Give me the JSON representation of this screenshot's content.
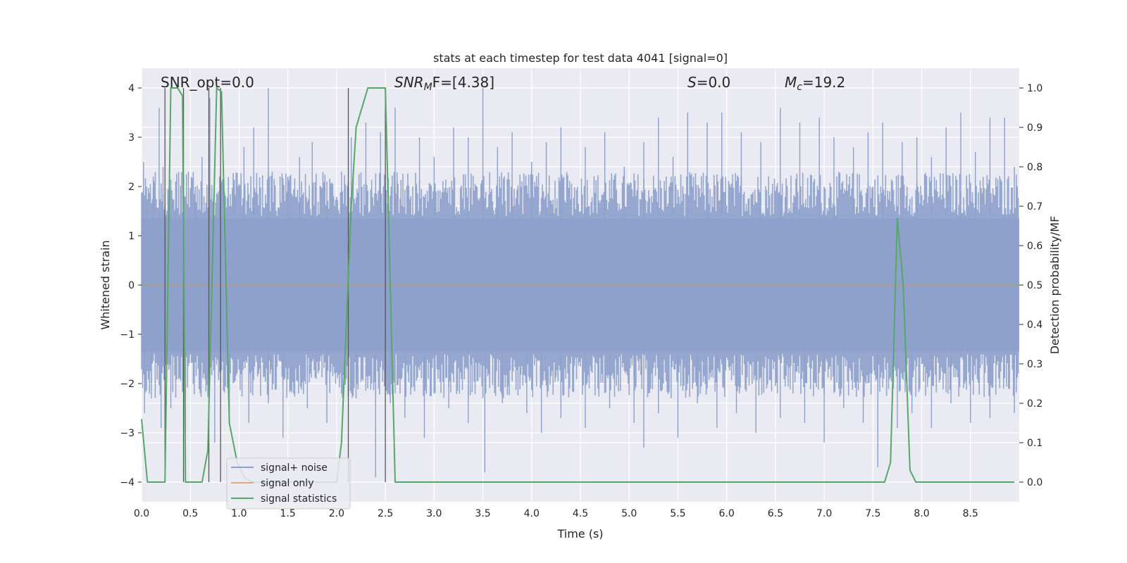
{
  "chart_data": {
    "type": "line",
    "title": "stats at each timestep for test data 4041 [signal=0]",
    "xlabel": "Time (s)",
    "ylabel": "Whitened strain",
    "y2label": "Detection probability/MF",
    "xlim": [
      0,
      9.0
    ],
    "ylim": [
      -4.4,
      4.4
    ],
    "y2lim": [
      -0.05,
      1.05
    ],
    "xticks": [
      "0.0",
      "0.5",
      "1.0",
      "1.5",
      "2.0",
      "2.5",
      "3.0",
      "3.5",
      "4.0",
      "4.5",
      "5.0",
      "5.5",
      "6.0",
      "6.5",
      "7.0",
      "7.5",
      "8.0",
      "8.5"
    ],
    "yticks": [
      "4",
      "3",
      "2",
      "1",
      "0",
      "−1",
      "−2",
      "−3",
      "−4"
    ],
    "y2ticks": [
      "1.0",
      "0.9",
      "0.8",
      "0.7",
      "0.6",
      "0.5",
      "0.4",
      "0.3",
      "0.2",
      "0.1",
      "0.0"
    ],
    "grid": true,
    "legend_placement": "lower-left",
    "annotations": {
      "snr_opt": "SNR_opt=0.0",
      "snr_mf_base": "SNR",
      "snr_mf_sub": "M",
      "snr_mf_tail": "F=[4.38]",
      "s_base": "S",
      "s_value": "=0.0",
      "mc_base": "M",
      "mc_sub": "c",
      "mc_value": "=19.2"
    },
    "series": [
      {
        "name": "signal+ noise",
        "color": "#8da0cb",
        "description_of_values": "whitened strain noise, approx. range -4 to 4",
        "peaks_x": [
          0.02,
          0.05,
          0.12,
          0.18,
          0.22,
          0.35,
          0.48,
          0.55,
          0.62,
          0.7,
          0.8,
          0.95,
          1.05,
          1.15,
          1.3,
          1.5,
          1.62,
          1.75,
          1.9,
          2.05,
          2.15,
          2.3,
          2.45,
          2.6,
          2.85,
          3.0,
          3.2,
          3.35,
          3.5,
          3.65,
          3.8,
          4.0,
          4.15,
          4.3,
          4.55,
          4.75,
          4.95,
          5.15,
          5.3,
          5.45,
          5.6,
          5.8,
          5.95,
          6.15,
          6.35,
          6.55,
          6.75,
          6.95,
          7.1,
          7.3,
          7.45,
          7.6,
          7.8,
          7.95,
          8.1,
          8.25,
          8.4,
          8.55,
          8.7,
          8.85,
          8.95
        ],
        "peaks_y": [
          2.5,
          2.0,
          2.2,
          3.6,
          2.4,
          2.1,
          2.3,
          2.0,
          2.6,
          3.8,
          2.2,
          2.1,
          2.8,
          3.2,
          4.0,
          2.2,
          2.6,
          2.9,
          2.1,
          2.3,
          3.0,
          3.3,
          3.1,
          3.6,
          3.0,
          2.6,
          3.2,
          3.0,
          4.0,
          2.8,
          3.1,
          2.5,
          2.9,
          3.2,
          2.8,
          3.1,
          2.4,
          2.9,
          3.4,
          2.6,
          3.5,
          3.3,
          3.5,
          3.1,
          2.9,
          3.6,
          3.3,
          3.4,
          3.0,
          2.8,
          3.1,
          3.3,
          2.9,
          3.0,
          2.6,
          3.2,
          3.5,
          2.7,
          3.4,
          3.4,
          2.4
        ],
        "troughs_x": [
          0.03,
          0.1,
          0.2,
          0.3,
          0.45,
          0.6,
          0.75,
          0.9,
          1.1,
          1.3,
          1.45,
          1.7,
          1.9,
          2.2,
          2.4,
          2.55,
          2.7,
          2.9,
          3.15,
          3.35,
          3.52,
          3.7,
          3.95,
          4.1,
          4.3,
          4.55,
          4.8,
          5.05,
          5.15,
          5.3,
          5.5,
          5.7,
          5.9,
          6.1,
          6.3,
          6.55,
          6.8,
          7.0,
          7.2,
          7.4,
          7.55,
          7.75,
          7.9,
          8.1,
          8.3,
          8.5,
          8.7,
          8.95
        ],
        "troughs_y": [
          -2.6,
          -2.3,
          -2.9,
          -2.5,
          -3.0,
          -2.2,
          -3.2,
          -2.6,
          -2.8,
          -2.4,
          -3.1,
          -2.5,
          -2.8,
          -2.3,
          -3.9,
          -2.4,
          -2.7,
          -3.1,
          -2.5,
          -2.8,
          -3.8,
          -2.4,
          -2.6,
          -3.0,
          -2.7,
          -2.9,
          -2.5,
          -2.8,
          -3.3,
          -2.6,
          -3.1,
          -2.4,
          -2.9,
          -2.6,
          -3.0,
          -2.7,
          -2.8,
          -3.2,
          -2.5,
          -2.8,
          -3.7,
          -2.9,
          -2.6,
          -2.9,
          -2.4,
          -2.8,
          -2.7,
          -2.6
        ]
      },
      {
        "name": "signal only",
        "color": "#e3a77a",
        "x": [
          0,
          9.0
        ],
        "y": [
          0,
          0
        ]
      },
      {
        "name": "signal statistics",
        "color": "#55a868",
        "x": [
          0.0,
          0.06,
          0.12,
          0.24,
          0.3,
          0.37,
          0.42,
          0.45,
          0.5,
          0.62,
          0.68,
          0.77,
          0.82,
          0.9,
          0.98,
          1.06,
          1.14,
          1.3,
          1.6,
          2.0,
          2.05,
          2.1,
          2.15,
          2.2,
          2.32,
          2.5,
          2.6,
          3.0,
          4.0,
          5.0,
          6.0,
          7.0,
          7.62,
          7.68,
          7.75,
          7.81,
          7.88,
          7.94,
          8.05,
          8.95
        ],
        "y": [
          0.16,
          0.0,
          0.0,
          0.0,
          1.0,
          1.0,
          0.98,
          0.0,
          0.0,
          0.0,
          0.08,
          1.0,
          0.99,
          0.15,
          0.05,
          0.01,
          0.0,
          0.0,
          0.0,
          0.0,
          0.1,
          0.4,
          0.7,
          0.9,
          1.0,
          1.0,
          0.0,
          0.0,
          0.0,
          0.0,
          0.0,
          0.0,
          0.0,
          0.05,
          0.67,
          0.5,
          0.03,
          0.0,
          0.0,
          0.0
        ]
      }
    ],
    "vlines_x": [
      0.24,
      0.43,
      0.69,
      0.81,
      2.12,
      2.5
    ]
  }
}
